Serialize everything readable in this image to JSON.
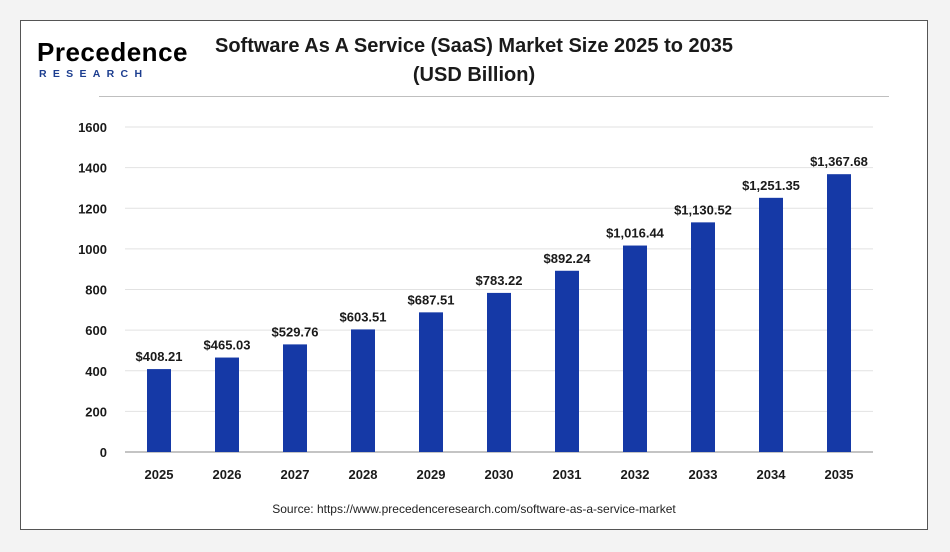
{
  "logo": {
    "word": "Precedence",
    "sub": "RESEARCH"
  },
  "chart_data": {
    "type": "bar",
    "title_line1": "Software As A Service (SaaS) Market Size 2025 to 2035",
    "title_line2": "(USD Billion)",
    "categories": [
      "2025",
      "2026",
      "2027",
      "2028",
      "2029",
      "2030",
      "2031",
      "2032",
      "2033",
      "2034",
      "2035"
    ],
    "values": [
      408.21,
      465.03,
      529.76,
      603.51,
      687.51,
      783.22,
      892.24,
      1016.44,
      1130.52,
      1251.35,
      1367.68
    ],
    "value_labels": [
      "$408.21",
      "$465.03",
      "$529.76",
      "$603.51",
      "$687.51",
      "$783.22",
      "$892.24",
      "$1,016.44",
      "$1,130.52",
      "$1,251.35",
      "$1,367.68"
    ],
    "yticks": [
      0,
      200,
      400,
      600,
      800,
      1000,
      1200,
      1400,
      1600
    ],
    "ylim": [
      0,
      1600
    ],
    "xlabel": "",
    "ylabel": "",
    "grid": true,
    "bar_color": "#1539a6",
    "source": "Source: https://www.precedenceresearch.com/software-as-a-service-market"
  }
}
